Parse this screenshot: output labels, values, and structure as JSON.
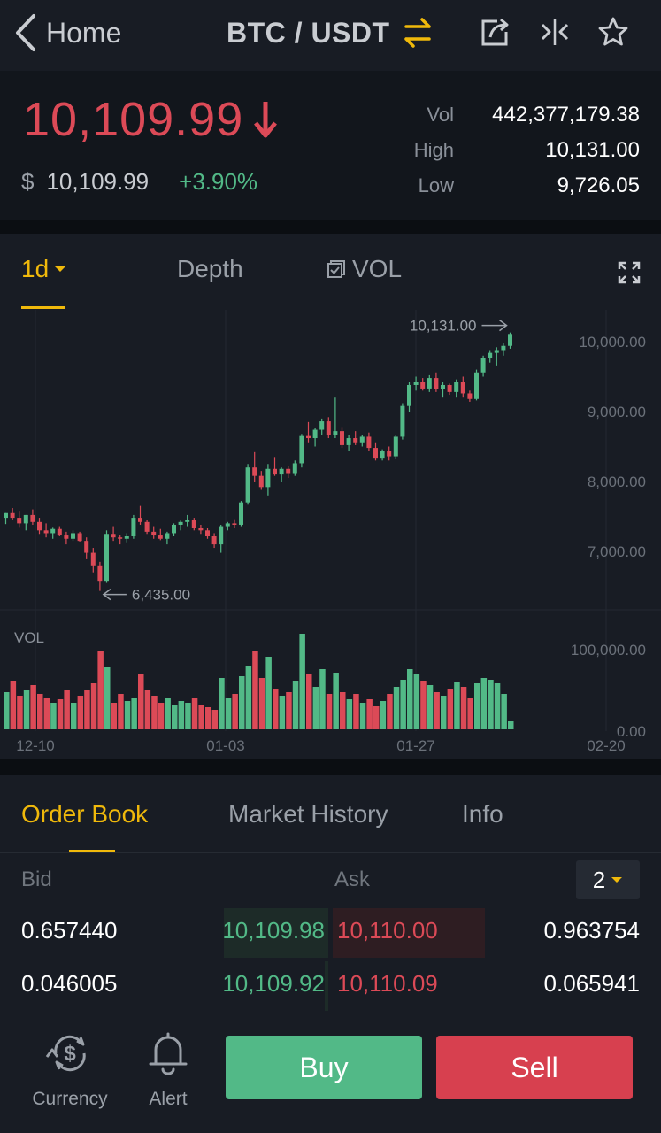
{
  "header": {
    "back_label": "Home",
    "pair_title": "BTC / USDT",
    "icons": [
      "chevron-left-icon",
      "swap-icon",
      "share-icon",
      "compare-icon",
      "star-icon"
    ]
  },
  "ticker": {
    "last_price": "10,109.99",
    "usd_sign": "$",
    "usd_price": "10,109.99",
    "change_pct": "+3.90%",
    "stats": [
      {
        "label": "Vol",
        "value": "442,377,179.38"
      },
      {
        "label": "High",
        "value": "10,131.00"
      },
      {
        "label": "Low",
        "value": "9,726.05"
      }
    ]
  },
  "chart_tabs": {
    "interval": "1d",
    "depth": "Depth",
    "vol": "VOL"
  },
  "chart_data": {
    "type": "candlestick",
    "x_ticks": [
      "12-10",
      "01-03",
      "01-27",
      "02-20"
    ],
    "price_ticks": [
      "10,000.00",
      "9,000.00",
      "8,000.00",
      "7,000.00"
    ],
    "vol_label": "VOL",
    "vol_ticks": [
      "100,000.00",
      "0.00"
    ],
    "high_annotation": "10,131.00",
    "low_annotation": "6,435.00",
    "candles": [
      [
        7480,
        7560,
        7390,
        7560
      ],
      [
        7560,
        7620,
        7450,
        7480
      ],
      [
        7480,
        7580,
        7350,
        7400
      ],
      [
        7400,
        7520,
        7300,
        7520
      ],
      [
        7520,
        7600,
        7380,
        7420
      ],
      [
        7420,
        7480,
        7250,
        7300
      ],
      [
        7300,
        7400,
        7200,
        7260
      ],
      [
        7260,
        7350,
        7180,
        7320
      ],
      [
        7320,
        7360,
        7220,
        7240
      ],
      [
        7240,
        7280,
        7100,
        7180
      ],
      [
        7180,
        7300,
        7150,
        7260
      ],
      [
        7260,
        7280,
        7140,
        7150
      ],
      [
        7150,
        7200,
        6900,
        6980
      ],
      [
        6980,
        7050,
        6700,
        6800
      ],
      [
        6800,
        6850,
        6435,
        6580
      ],
      [
        6580,
        7300,
        6550,
        7250
      ],
      [
        7250,
        7360,
        7150,
        7200
      ],
      [
        7200,
        7240,
        7100,
        7180
      ],
      [
        7180,
        7260,
        7130,
        7220
      ],
      [
        7220,
        7520,
        7180,
        7480
      ],
      [
        7480,
        7650,
        7380,
        7420
      ],
      [
        7420,
        7450,
        7250,
        7280
      ],
      [
        7280,
        7360,
        7180,
        7240
      ],
      [
        7240,
        7320,
        7160,
        7180
      ],
      [
        7180,
        7280,
        7100,
        7260
      ],
      [
        7260,
        7400,
        7220,
        7380
      ],
      [
        7380,
        7440,
        7300,
        7420
      ],
      [
        7420,
        7520,
        7360,
        7450
      ],
      [
        7450,
        7480,
        7300,
        7340
      ],
      [
        7340,
        7380,
        7250,
        7300
      ],
      [
        7300,
        7340,
        7180,
        7220
      ],
      [
        7220,
        7260,
        7050,
        7100
      ],
      [
        7100,
        7380,
        6980,
        7360
      ],
      [
        7360,
        7420,
        7300,
        7400
      ],
      [
        7400,
        7460,
        7330,
        7380
      ],
      [
        7380,
        7720,
        7360,
        7700
      ],
      [
        7700,
        8250,
        7680,
        8200
      ],
      [
        8200,
        8420,
        8000,
        8080
      ],
      [
        8080,
        8150,
        7880,
        7920
      ],
      [
        7920,
        8250,
        7800,
        8180
      ],
      [
        8180,
        8350,
        8080,
        8100
      ],
      [
        8100,
        8200,
        8000,
        8180
      ],
      [
        8180,
        8220,
        8050,
        8120
      ],
      [
        8120,
        8300,
        8080,
        8260
      ],
      [
        8260,
        8680,
        8200,
        8650
      ],
      [
        8650,
        8850,
        8560,
        8620
      ],
      [
        8620,
        8760,
        8500,
        8740
      ],
      [
        8740,
        8900,
        8660,
        8860
      ],
      [
        8860,
        8920,
        8620,
        8660
      ],
      [
        8660,
        9200,
        8620,
        8720
      ],
      [
        8720,
        8780,
        8480,
        8520
      ],
      [
        8520,
        8660,
        8440,
        8620
      ],
      [
        8620,
        8720,
        8520,
        8560
      ],
      [
        8560,
        8660,
        8500,
        8640
      ],
      [
        8640,
        8700,
        8440,
        8480
      ],
      [
        8480,
        8560,
        8300,
        8340
      ],
      [
        8340,
        8460,
        8300,
        8440
      ],
      [
        8440,
        8500,
        8300,
        8360
      ],
      [
        8360,
        8660,
        8320,
        8640
      ],
      [
        8640,
        9120,
        8600,
        9080
      ],
      [
        9080,
        9420,
        9000,
        9380
      ],
      [
        9380,
        9500,
        9300,
        9420
      ],
      [
        9420,
        9480,
        9300,
        9330
      ],
      [
        9330,
        9520,
        9280,
        9480
      ],
      [
        9480,
        9560,
        9280,
        9320
      ],
      [
        9320,
        9420,
        9200,
        9380
      ],
      [
        9380,
        9400,
        9240,
        9280
      ],
      [
        9280,
        9460,
        9200,
        9420
      ],
      [
        9420,
        9500,
        9200,
        9260
      ],
      [
        9260,
        9300,
        9140,
        9180
      ],
      [
        9180,
        9600,
        9160,
        9560
      ],
      [
        9560,
        9800,
        9500,
        9760
      ],
      [
        9760,
        9880,
        9700,
        9840
      ],
      [
        9840,
        9920,
        9660,
        9880
      ],
      [
        9880,
        9980,
        9800,
        9940
      ],
      [
        9940,
        10131,
        9900,
        10110
      ]
    ],
    "volumes": [
      42,
      55,
      38,
      45,
      50,
      40,
      36,
      30,
      34,
      45,
      30,
      38,
      44,
      52,
      88,
      70,
      30,
      40,
      32,
      35,
      62,
      45,
      38,
      30,
      36,
      28,
      32,
      30,
      36,
      28,
      25,
      22,
      58,
      36,
      40,
      60,
      72,
      88,
      58,
      82,
      46,
      38,
      42,
      55,
      108,
      62,
      48,
      68,
      40,
      64,
      42,
      34,
      40,
      30,
      34,
      26,
      32,
      40,
      48,
      56,
      68,
      62,
      55,
      50,
      42,
      38,
      46,
      54,
      48,
      36,
      52,
      58,
      56,
      52,
      40,
      10
    ]
  },
  "order_book": {
    "tabs": [
      "Order Book",
      "Market History",
      "Info"
    ],
    "bid_label": "Bid",
    "ask_label": "Ask",
    "precision": "2",
    "rows": [
      {
        "bid_amount": "0.657440",
        "bid_price": "10,109.98",
        "ask_price": "10,110.00",
        "ask_amount": "0.963754"
      },
      {
        "bid_amount": "0.046005",
        "bid_price": "10,109.92",
        "ask_price": "10,110.09",
        "ask_amount": "0.065941"
      }
    ]
  },
  "bottom_bar": {
    "currency_label": "Currency",
    "alert_label": "Alert",
    "buy_label": "Buy",
    "sell_label": "Sell"
  },
  "colors": {
    "up": "#52b987",
    "down": "#dc4a57",
    "accent": "#f0b90b",
    "background": "#181c24"
  }
}
